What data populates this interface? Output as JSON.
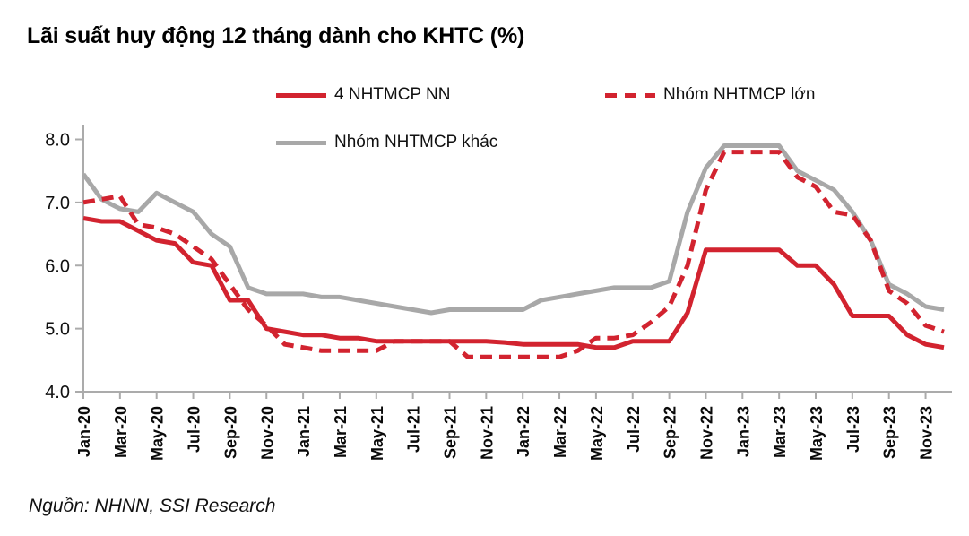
{
  "title": "Lãi suất huy động 12 tháng dành cho KHTC (%)",
  "source": "Nguồn: NHNN, SSI Research",
  "colors": {
    "series_red": "#d2232f",
    "series_gray": "#a8a8a8",
    "axis": "#ababab",
    "text": "#111111"
  },
  "legend": [
    {
      "label": "4 NHTMCP NN",
      "style": "solid-red"
    },
    {
      "label": "Nhóm NHTMCP lớn",
      "style": "dashed-red"
    },
    {
      "label": "Nhóm NHTMCP khác",
      "style": "solid-gray"
    }
  ],
  "chart_data": {
    "type": "line",
    "x_interval": "monthly",
    "x_range": [
      "Jan-20",
      "Dec-23"
    ],
    "x_tick_labels": [
      "Jan-20",
      "Mar-20",
      "May-20",
      "Jul-20",
      "Sep-20",
      "Nov-20",
      "Jan-21",
      "Mar-21",
      "May-21",
      "Jul-21",
      "Sep-21",
      "Nov-21",
      "Jan-22",
      "Mar-22",
      "May-22",
      "Jul-22",
      "Sep-22",
      "Nov-22",
      "Jan-23",
      "Mar-23",
      "May-23",
      "Jul-23",
      "Sep-23",
      "Nov-23"
    ],
    "ylim": [
      4.0,
      8.0
    ],
    "yticks": [
      "4.0",
      "5.0",
      "6.0",
      "7.0",
      "8.0"
    ],
    "grid": false,
    "legend_position": "top",
    "series": [
      {
        "name": "Nhóm NHTMCP khác",
        "style": "solid",
        "color": "#a8a8a8",
        "values": [
          7.45,
          7.05,
          6.9,
          6.85,
          7.15,
          7.0,
          6.85,
          6.5,
          6.3,
          5.65,
          5.55,
          5.55,
          5.55,
          5.5,
          5.5,
          5.45,
          5.4,
          5.35,
          5.3,
          5.25,
          5.3,
          5.3,
          5.3,
          5.3,
          5.3,
          5.45,
          5.5,
          5.55,
          5.6,
          5.65,
          5.65,
          5.65,
          5.75,
          6.85,
          7.55,
          7.9,
          7.9,
          7.9,
          7.9,
          7.5,
          7.35,
          7.2,
          6.85,
          6.4,
          5.7,
          5.55,
          5.35,
          5.3
        ]
      },
      {
        "name": "4 NHTMCP NN",
        "style": "solid",
        "color": "#d2232f",
        "values": [
          6.75,
          6.7,
          6.7,
          6.55,
          6.4,
          6.35,
          6.05,
          6.0,
          5.45,
          5.45,
          5.0,
          4.95,
          4.9,
          4.9,
          4.85,
          4.85,
          4.8,
          4.8,
          4.8,
          4.8,
          4.8,
          4.8,
          4.8,
          4.78,
          4.75,
          4.75,
          4.75,
          4.75,
          4.7,
          4.7,
          4.8,
          4.8,
          4.8,
          5.25,
          6.25,
          6.25,
          6.25,
          6.25,
          6.25,
          6.0,
          6.0,
          5.7,
          5.2,
          5.2,
          5.2,
          4.9,
          4.75,
          4.7
        ]
      },
      {
        "name": "Nhóm NHTMCP lớn",
        "style": "dashed",
        "color": "#d2232f",
        "values": [
          7.0,
          7.05,
          7.1,
          6.65,
          6.6,
          6.5,
          6.3,
          6.1,
          5.7,
          5.3,
          5.05,
          4.75,
          4.7,
          4.65,
          4.65,
          4.65,
          4.65,
          4.8,
          4.8,
          4.8,
          4.8,
          4.55,
          4.55,
          4.55,
          4.55,
          4.55,
          4.55,
          4.65,
          4.85,
          4.85,
          4.9,
          5.1,
          5.35,
          6.0,
          7.2,
          7.8,
          7.8,
          7.8,
          7.8,
          7.4,
          7.25,
          6.85,
          6.8,
          6.4,
          5.6,
          5.4,
          5.05,
          4.95
        ]
      }
    ]
  }
}
